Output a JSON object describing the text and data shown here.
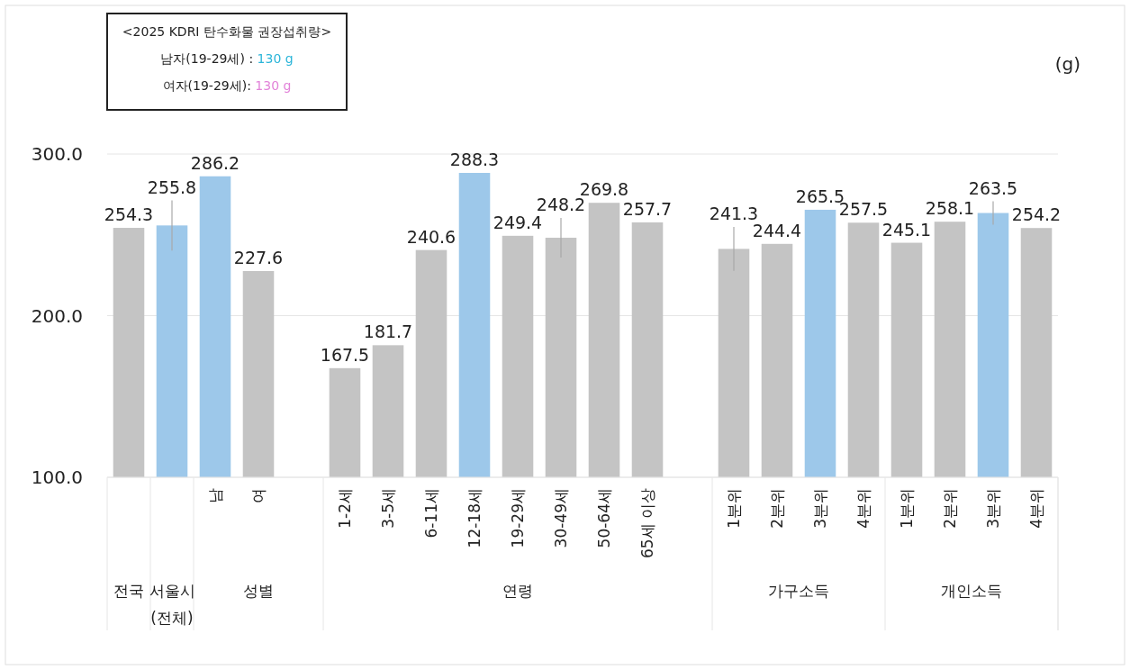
{
  "chart_data": {
    "type": "bar",
    "categories": [
      null,
      null,
      "남",
      "여",
      null,
      "1-2세",
      "3-5세",
      "6-11세",
      "12-18세",
      "19-29세",
      "30-49세",
      "50-64세",
      "65세 이상",
      null,
      "1분위",
      "2분위",
      "3분위",
      "4분위",
      "1분위",
      "2분위",
      "3분위",
      "4분위"
    ],
    "values": [
      254.3,
      255.8,
      286.2,
      227.6,
      null,
      167.5,
      181.7,
      240.6,
      288.3,
      249.4,
      248.2,
      269.8,
      257.7,
      null,
      241.3,
      244.4,
      265.5,
      257.5,
      245.1,
      258.1,
      263.5,
      254.2
    ],
    "colors": [
      "#c4c4c4",
      "#9dc8ea",
      "#9dc8ea",
      "#c4c4c4",
      null,
      "#c4c4c4",
      "#c4c4c4",
      "#c4c4c4",
      "#9dc8ea",
      "#c4c4c4",
      "#c4c4c4",
      "#c4c4c4",
      "#c4c4c4",
      null,
      "#c4c4c4",
      "#c4c4c4",
      "#9dc8ea",
      "#c4c4c4",
      "#c4c4c4",
      "#c4c4c4",
      "#9dc8ea",
      "#c4c4c4"
    ],
    "errors": [
      null,
      15.5,
      null,
      null,
      null,
      null,
      null,
      null,
      null,
      null,
      12.2,
      null,
      null,
      null,
      13.6,
      null,
      null,
      null,
      null,
      null,
      7.2,
      null
    ],
    "data_labels": true,
    "ylabel": "(g)",
    "ylim": [
      100,
      300
    ],
    "yticks": [
      {
        "value": 100,
        "label": "100.0"
      },
      {
        "value": 200,
        "label": "200.0"
      },
      {
        "value": 300,
        "label": "300.0"
      }
    ],
    "grid": "y",
    "annotations": [
      "<2025 KDRI 탄수화물 권장섭취량>",
      "남자(19-29세) : 130 g",
      "여자(19-29세): 130 g",
      "전국",
      "서울시 (전체)",
      "성별",
      "연령",
      "가구소득",
      "개인소득"
    ]
  }
}
